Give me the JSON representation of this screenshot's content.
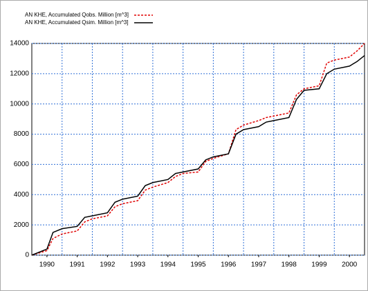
{
  "chart_data": {
    "type": "line",
    "x": [
      1990,
      1990.5,
      1990.7,
      1991,
      1991.5,
      1991.75,
      1992,
      1992.5,
      1992.75,
      1993,
      1993.5,
      1993.75,
      1994,
      1994.5,
      1994.75,
      1995,
      1995.5,
      1995.75,
      1996,
      1996.5,
      1996.75,
      1997,
      1997.5,
      1997.75,
      1998,
      1998.5,
      1998.75,
      1999,
      1999.5,
      1999.75,
      2000,
      2000.5,
      2000.75,
      2001
    ],
    "series": [
      {
        "name": "AN KHE, Accumulated Qobs. Million [m^3]",
        "color": "#e00000",
        "dashed": true,
        "values": [
          0,
          300,
          1100,
          1400,
          1600,
          2200,
          2400,
          2600,
          3200,
          3400,
          3600,
          4300,
          4500,
          4800,
          5200,
          5400,
          5500,
          6200,
          6400,
          6700,
          8300,
          8600,
          8900,
          9100,
          9200,
          9400,
          10600,
          11000,
          11200,
          12700,
          12900,
          13100,
          13500,
          14000
        ]
      },
      {
        "name": "AN KHE, Accumulated Qsim. Million [m^3]",
        "color": "#000000",
        "dashed": false,
        "values": [
          0,
          400,
          1500,
          1750,
          1900,
          2500,
          2600,
          2800,
          3500,
          3700,
          3900,
          4600,
          4800,
          5000,
          5400,
          5500,
          5700,
          6300,
          6500,
          6700,
          8000,
          8300,
          8500,
          8800,
          8900,
          9100,
          10300,
          10900,
          11000,
          12000,
          12300,
          12500,
          12800,
          13200
        ]
      }
    ],
    "xlim": [
      1990,
      2001
    ],
    "xticks": [
      {
        "value": 1990.5,
        "label": "1990"
      },
      {
        "value": 1991.5,
        "label": "1991"
      },
      {
        "value": 1992.5,
        "label": "1992"
      },
      {
        "value": 1993.5,
        "label": "1993"
      },
      {
        "value": 1994.5,
        "label": "1994"
      },
      {
        "value": 1995.5,
        "label": "1995"
      },
      {
        "value": 1996.5,
        "label": "1996"
      },
      {
        "value": 1997.5,
        "label": "1997"
      },
      {
        "value": 1998.5,
        "label": "1998"
      },
      {
        "value": 1999.5,
        "label": "1999"
      },
      {
        "value": 2000.5,
        "label": "2000"
      }
    ],
    "xgrid": [
      1991,
      1992,
      1993,
      1994,
      1995,
      1996,
      1997,
      1998,
      1999,
      2000
    ],
    "ylim": [
      0,
      14000
    ],
    "yticks": [
      0,
      2000,
      4000,
      6000,
      8000,
      10000,
      12000,
      14000
    ],
    "grid": true,
    "grid_color": "#2f6fd6",
    "legend": "top-left"
  }
}
